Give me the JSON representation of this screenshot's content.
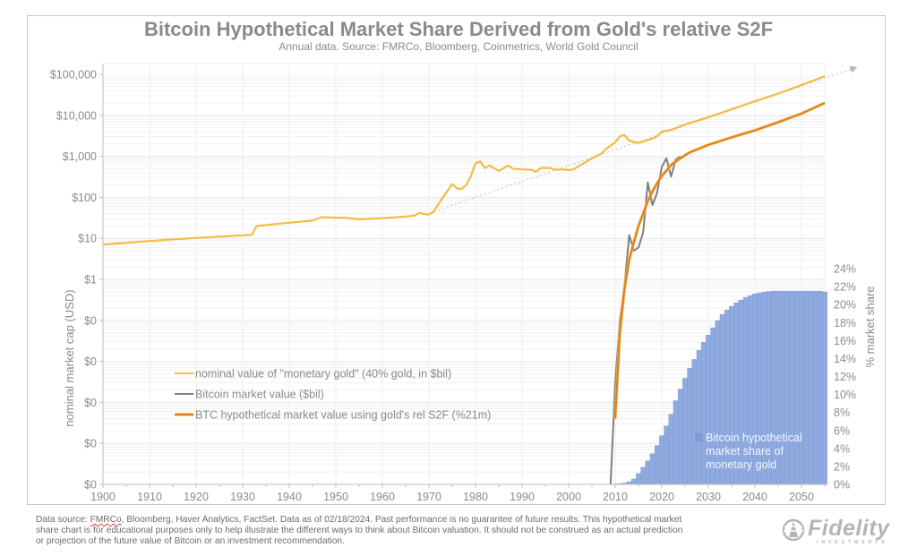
{
  "chart_data": {
    "type": "line",
    "title": "Bitcoin Hypothetical Market Share Derived from Gold's relative S2F",
    "subtitle": "Annual data.  Source: FMRCo, Bloomberg, Coinmetrics, World Gold Council",
    "xlabel": "",
    "ylabel": "nominal market cap (USD)",
    "y2label": "% market share",
    "x_ticks": [
      "1900",
      "1910",
      "1920",
      "1930",
      "1940",
      "1950",
      "1960",
      "1970",
      "1980",
      "1990",
      "2000",
      "2010",
      "2020",
      "2030",
      "2040",
      "2050"
    ],
    "xlim": [
      1900,
      2055
    ],
    "y_scale": "log",
    "y_ticks": [
      "$100,000",
      "$10,000",
      "$1,000",
      "$100",
      "$10",
      "$1",
      "$0",
      "$0",
      "$0",
      "$0",
      "$0"
    ],
    "ylim_log10": [
      -5,
      5
    ],
    "y2_ticks": [
      "0%",
      "2%",
      "4%",
      "6%",
      "8%",
      "10%",
      "12%",
      "14%",
      "16%",
      "18%",
      "20%",
      "22%",
      "24%"
    ],
    "y2lim": [
      0,
      24
    ],
    "grid": true,
    "legend_position": "center-left",
    "series": [
      {
        "name": "nominal value of \"monetary gold\" (40% gold, in $bil)",
        "type": "line",
        "axis": "left",
        "color": "#f2bc45",
        "points": [
          [
            1900,
            7
          ],
          [
            1905,
            7.8
          ],
          [
            1910,
            8.6
          ],
          [
            1915,
            9.4
          ],
          [
            1920,
            10.2
          ],
          [
            1925,
            11
          ],
          [
            1930,
            11.8
          ],
          [
            1932,
            12.3
          ],
          [
            1933,
            20
          ],
          [
            1935,
            21
          ],
          [
            1940,
            24
          ],
          [
            1945,
            27
          ],
          [
            1947,
            33
          ],
          [
            1950,
            32
          ],
          [
            1952,
            32
          ],
          [
            1955,
            29
          ],
          [
            1960,
            31
          ],
          [
            1965,
            34
          ],
          [
            1967,
            36
          ],
          [
            1968,
            42
          ],
          [
            1969,
            39
          ],
          [
            1970,
            38
          ],
          [
            1971,
            45
          ],
          [
            1973,
            100
          ],
          [
            1975,
            210
          ],
          [
            1976,
            165
          ],
          [
            1977,
            160
          ],
          [
            1978,
            200
          ],
          [
            1979,
            330
          ],
          [
            1980,
            680
          ],
          [
            1981,
            750
          ],
          [
            1982,
            520
          ],
          [
            1983,
            600
          ],
          [
            1985,
            440
          ],
          [
            1987,
            600
          ],
          [
            1988,
            500
          ],
          [
            1990,
            480
          ],
          [
            1992,
            470
          ],
          [
            1993,
            420
          ],
          [
            1994,
            520
          ],
          [
            1996,
            520
          ],
          [
            1997,
            470
          ],
          [
            1999,
            480
          ],
          [
            2000,
            460
          ],
          [
            2001,
            480
          ],
          [
            2003,
            650
          ],
          [
            2005,
            900
          ],
          [
            2007,
            1150
          ],
          [
            2008,
            1500
          ],
          [
            2010,
            2200
          ],
          [
            2011,
            3100
          ],
          [
            2012,
            3300
          ],
          [
            2013,
            2400
          ],
          [
            2015,
            2100
          ],
          [
            2016,
            2300
          ],
          [
            2018,
            2700
          ],
          [
            2019,
            3100
          ],
          [
            2020,
            4000
          ],
          [
            2022,
            4400
          ],
          [
            2025,
            6000
          ],
          [
            2030,
            9000
          ],
          [
            2035,
            14000
          ],
          [
            2040,
            22000
          ],
          [
            2045,
            34000
          ],
          [
            2050,
            55000
          ],
          [
            2055,
            90000
          ]
        ]
      },
      {
        "name": "Bitcoin market value ($bil)",
        "type": "line",
        "axis": "left",
        "color": "#7f7f7f",
        "points": [
          [
            2009,
            1e-05
          ],
          [
            2010,
            0.003
          ],
          [
            2011,
            0.1
          ],
          [
            2012,
            0.7
          ],
          [
            2013,
            12
          ],
          [
            2014,
            5
          ],
          [
            2015,
            6
          ],
          [
            2016,
            14
          ],
          [
            2017,
            230
          ],
          [
            2018,
            65
          ],
          [
            2019,
            130
          ],
          [
            2020,
            550
          ],
          [
            2021,
            900
          ],
          [
            2022,
            320
          ],
          [
            2023,
            840
          ],
          [
            2024,
            1000
          ]
        ]
      },
      {
        "name": "BTC hypothetical market value using gold's rel S2F (%21m)",
        "type": "line",
        "axis": "left",
        "color": "#e07b24",
        "points": [
          [
            2010,
            0.0004
          ],
          [
            2011,
            0.05
          ],
          [
            2012,
            0.6
          ],
          [
            2013,
            3
          ],
          [
            2014,
            8
          ],
          [
            2015,
            20
          ],
          [
            2016,
            40
          ],
          [
            2017,
            80
          ],
          [
            2018,
            140
          ],
          [
            2019,
            220
          ],
          [
            2020,
            330
          ],
          [
            2021,
            450
          ],
          [
            2022,
            620
          ],
          [
            2024,
            900
          ],
          [
            2026,
            1250
          ],
          [
            2030,
            1900
          ],
          [
            2035,
            2900
          ],
          [
            2040,
            4300
          ],
          [
            2045,
            6800
          ],
          [
            2050,
            11000
          ],
          [
            2055,
            20000
          ]
        ]
      },
      {
        "name": "Bitcoin hypothetical market share of monetary gold",
        "type": "bar",
        "axis": "right",
        "color": "#8eaade",
        "x": [
          2010,
          2011,
          2012,
          2013,
          2014,
          2015,
          2016,
          2017,
          2018,
          2019,
          2020,
          2021,
          2022,
          2023,
          2024,
          2025,
          2026,
          2027,
          2028,
          2029,
          2030,
          2031,
          2032,
          2033,
          2034,
          2035,
          2036,
          2037,
          2038,
          2039,
          2040,
          2041,
          2042,
          2043,
          2044,
          2045,
          2046,
          2047,
          2048,
          2049,
          2050,
          2051,
          2052,
          2053,
          2054,
          2055
        ],
        "values": [
          0.05,
          0.08,
          0.15,
          0.3,
          0.6,
          1.2,
          1.9,
          2.6,
          3.4,
          4.3,
          5.4,
          6.5,
          7.8,
          9.3,
          10.6,
          11.8,
          12.9,
          13.9,
          14.9,
          15.8,
          16.6,
          17.4,
          18.2,
          18.9,
          19.4,
          19.8,
          20.2,
          20.5,
          20.8,
          21.0,
          21.2,
          21.3,
          21.4,
          21.45,
          21.5,
          21.5,
          21.5,
          21.5,
          21.5,
          21.5,
          21.5,
          21.5,
          21.5,
          21.5,
          21.5,
          21.4
        ]
      }
    ],
    "trend_line": {
      "style": "dotted",
      "color": "#c8c8c8",
      "from": [
        1971,
        45
      ],
      "to": [
        2062,
        150000
      ],
      "arrow": true
    },
    "bar_legend_label_lines": [
      "Bitcoin hypothetical",
      "market share of",
      "monetary gold"
    ]
  },
  "footer": {
    "line1_pre": "Data source: ",
    "line1_squiggle": "FMRCo",
    "line1_post": ", Bloomberg, Haver Analytics, FactSet. Data as of 02/18/2024. Past performance is no guarantee of future results. This hypothetical market",
    "line2": "share chart is for educational purposes only to help illustrate the different ways to think about Bitcoin valuation.  It should not be construed as an actual prediction",
    "line3": "or projection of the future value of Bitcoin or an investment recommendation."
  },
  "logo": {
    "word": "Fidelity",
    "sub": "INVESTMENTS"
  }
}
